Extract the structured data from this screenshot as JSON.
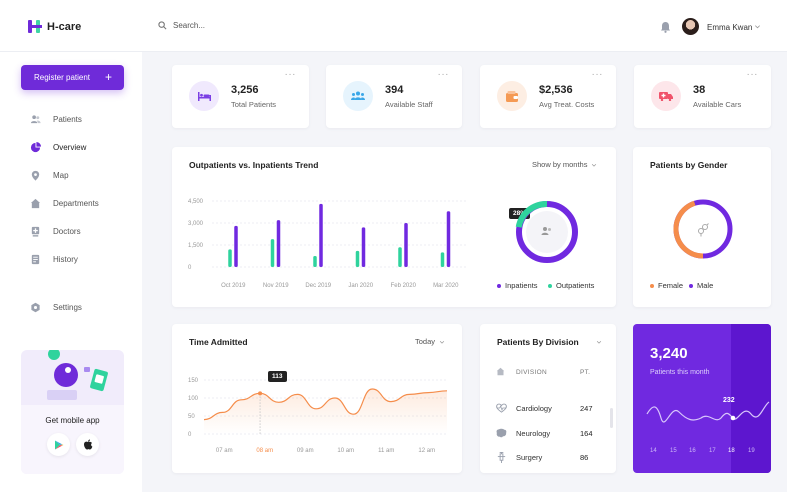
{
  "app": {
    "logo_text": "H-care"
  },
  "header": {
    "search_placeholder": "Search...",
    "user_name": "Emma Kwan"
  },
  "sidebar": {
    "register_label": "Register patient",
    "items": [
      {
        "label": "Patients",
        "icon": "users-icon"
      },
      {
        "label": "Overview",
        "icon": "pie-chart-icon",
        "active": true
      },
      {
        "label": "Map",
        "icon": "map-pin-icon"
      },
      {
        "label": "Departments",
        "icon": "home-icon"
      },
      {
        "label": "Doctors",
        "icon": "doctor-icon"
      },
      {
        "label": "History",
        "icon": "history-icon"
      },
      {
        "label": "Settings",
        "icon": "gear-icon"
      }
    ],
    "promo_title": "Get mobile app"
  },
  "stats": [
    {
      "value": "3,256",
      "label": "Total Patients",
      "icon": "bed-icon",
      "color": "#7b3fe4"
    },
    {
      "value": "394",
      "label": "Available Staff",
      "icon": "staff-icon",
      "color": "#3aa7e8"
    },
    {
      "value": "$2,536",
      "label": "Avg Treat. Costs",
      "icon": "wallet-icon",
      "color": "#f59a54"
    },
    {
      "value": "38",
      "label": "Available Cars",
      "icon": "ambulance-icon",
      "color": "#f0536b"
    }
  ],
  "trend": {
    "title": "Outpatients vs. Inpatients Trend",
    "filter": "Show by months",
    "donut_label": "28%",
    "legend": [
      "Inpatients",
      "Outpatients"
    ],
    "colors": {
      "inpatients": "#7029e0",
      "outpatients": "#2fd39d"
    }
  },
  "gender": {
    "title": "Patients by Gender",
    "legend": [
      "Female",
      "Male"
    ],
    "colors": {
      "female": "#f58d4b",
      "male": "#7029e0"
    }
  },
  "time_admitted": {
    "title": "Time Admitted",
    "filter": "Today",
    "tooltip": "113"
  },
  "division": {
    "title": "Patients By Division",
    "col_division": "DIVISION",
    "col_pt": "PT.",
    "rows": [
      {
        "label": "Cardiology",
        "count": "247",
        "icon": "heart-pulse-icon"
      },
      {
        "label": "Neurology",
        "count": "164",
        "icon": "brain-icon"
      },
      {
        "label": "Surgery",
        "count": "86",
        "icon": "syringe-icon"
      }
    ]
  },
  "month_card": {
    "value": "3,240",
    "label": "Patients this month",
    "badge": "232",
    "days": [
      "14",
      "15",
      "16",
      "17",
      "18",
      "19"
    ],
    "active_day": "18"
  },
  "chart_data": [
    {
      "type": "bar",
      "title": "Outpatients vs. Inpatients Trend",
      "categories": [
        "Oct 2019",
        "Nov 2019",
        "Dec 2019",
        "Jan 2020",
        "Feb 2020",
        "Mar 2020"
      ],
      "yticks": [
        "4,500",
        "3,000",
        "1,500",
        "0"
      ],
      "ylim": [
        0,
        4500
      ],
      "series": [
        {
          "name": "Outpatients",
          "values": [
            1200,
            1900,
            750,
            1100,
            1350,
            1000
          ]
        },
        {
          "name": "Inpatients",
          "values": [
            2800,
            3200,
            4300,
            2700,
            3000,
            3800
          ]
        }
      ]
    },
    {
      "type": "pie",
      "slices": [
        {
          "name": "Outpatients",
          "value": 28
        },
        {
          "name": "Inpatients",
          "value": 72
        }
      ]
    },
    {
      "type": "pie",
      "slices": [
        {
          "name": "Female",
          "value": 40
        },
        {
          "name": "Male",
          "value": 60
        }
      ]
    },
    {
      "type": "area",
      "title": "Time Admitted",
      "categories": [
        "07 am",
        "08 am",
        "09 am",
        "10 am",
        "11 am",
        "12 am"
      ],
      "yticks": [
        "150",
        "100",
        "50",
        "0"
      ],
      "ylim": [
        0,
        150
      ],
      "highlight": "08 am",
      "x": [
        0,
        0.5,
        1,
        1.5,
        2,
        2.5,
        3,
        3.5,
        4,
        4.5,
        5,
        5.5,
        6,
        6.5
      ],
      "values": [
        40,
        60,
        95,
        113,
        88,
        110,
        70,
        100,
        55,
        125,
        90,
        110,
        115,
        120
      ]
    }
  ]
}
